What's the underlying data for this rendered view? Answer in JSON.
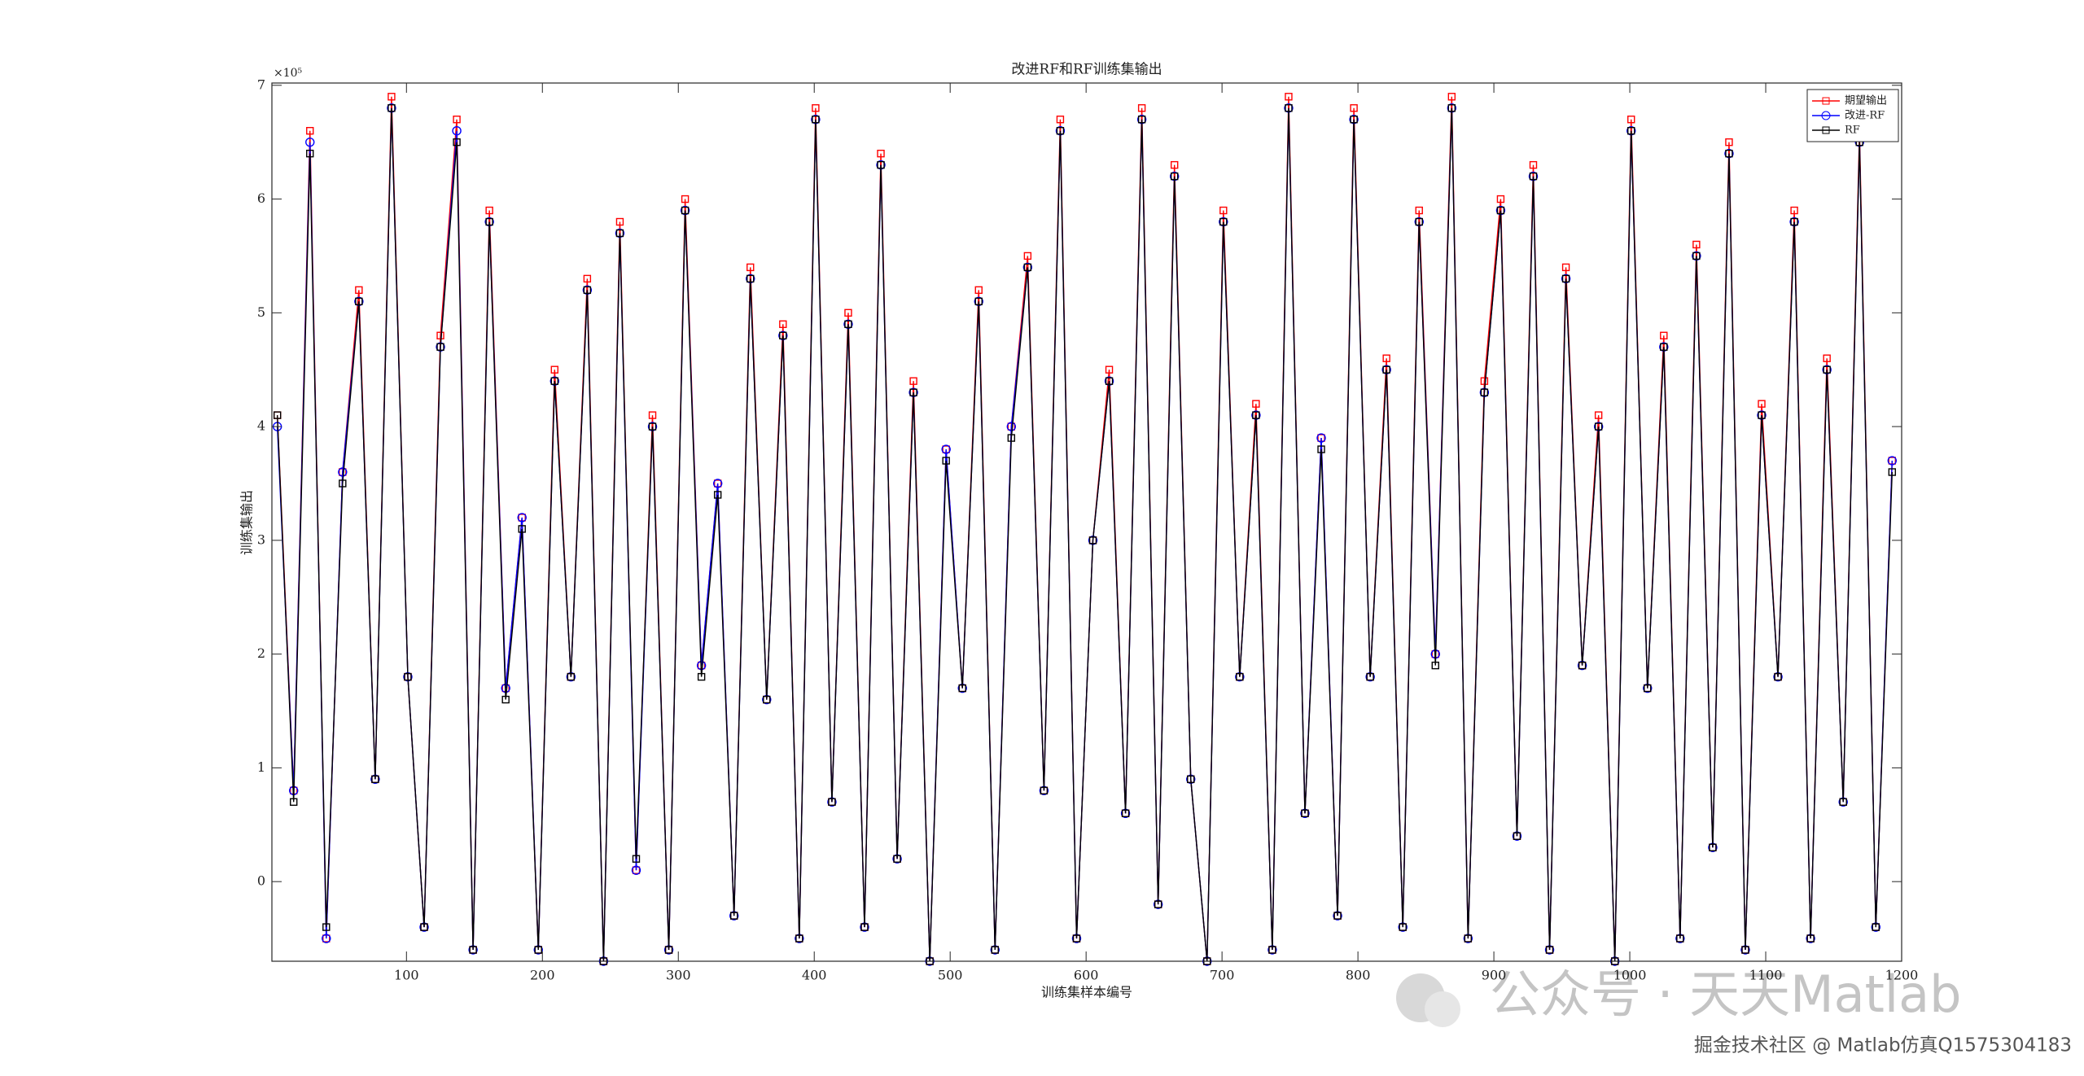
{
  "chart_data": {
    "type": "line",
    "title": "改进RF和RF训练集输出",
    "x_label": "训练集样本编号",
    "y_label": "训练集输出",
    "y_exponent_label": "×10⁵",
    "x": [
      5,
      17,
      29,
      41,
      53,
      65,
      77,
      89,
      101,
      113,
      125,
      137,
      149,
      161,
      173,
      185,
      197,
      209,
      221,
      233,
      245,
      257,
      269,
      281,
      293,
      305,
      317,
      329,
      341,
      353,
      365,
      377,
      389,
      401,
      413,
      425,
      437,
      449,
      461,
      473,
      485,
      497,
      509,
      521,
      533,
      545,
      557,
      569,
      581,
      593,
      605,
      617,
      629,
      641,
      653,
      665,
      677,
      689,
      701,
      713,
      725,
      737,
      749,
      761,
      773,
      785,
      797,
      809,
      821,
      833,
      845,
      857,
      869,
      881,
      893,
      905,
      917,
      929,
      941,
      953,
      965,
      977,
      989,
      1001,
      1013,
      1025,
      1037,
      1049,
      1061,
      1073,
      1085,
      1097,
      1109,
      1121,
      1133,
      1145,
      1157,
      1169,
      1181,
      1193
    ],
    "series": [
      {
        "name": "期望输出",
        "color": "#ff0000",
        "marker": "square",
        "values": [
          4.1,
          0.8,
          6.6,
          -0.5,
          3.6,
          5.2,
          0.9,
          6.9,
          1.8,
          -0.4,
          4.8,
          6.7,
          -0.6,
          5.9,
          1.7,
          3.2,
          -0.6,
          4.5,
          1.8,
          5.3,
          -0.7,
          5.8,
          0.1,
          4.1,
          -0.6,
          6.0,
          1.9,
          3.5,
          -0.3,
          5.4,
          1.6,
          4.9,
          -0.5,
          6.8,
          0.7,
          5.0,
          -0.4,
          6.4,
          0.2,
          4.4,
          -0.7,
          3.8,
          1.7,
          5.2,
          -0.6,
          4.0,
          5.5,
          0.8,
          6.7,
          -0.5,
          3.0,
          4.5,
          0.6,
          6.8,
          -0.2,
          6.3,
          0.9,
          -0.7,
          5.9,
          1.8,
          4.2,
          -0.6,
          6.9,
          0.6,
          3.9,
          -0.3,
          6.8,
          1.8,
          4.6,
          -0.4,
          5.9,
          2.0,
          6.9,
          -0.5,
          4.4,
          6.0,
          0.4,
          6.3,
          -0.6,
          5.4,
          1.9,
          4.1,
          -0.7,
          6.7,
          1.7,
          4.8,
          -0.5,
          5.6,
          0.3,
          6.5,
          -0.6,
          4.2,
          1.8,
          5.9,
          -0.5,
          4.6,
          0.7,
          6.6,
          -0.4,
          3.7
        ]
      },
      {
        "name": "改进-RF",
        "color": "#0000ff",
        "marker": "circle",
        "values": [
          4.0,
          0.8,
          6.5,
          -0.5,
          3.6,
          5.1,
          0.9,
          6.8,
          1.8,
          -0.4,
          4.7,
          6.6,
          -0.6,
          5.8,
          1.7,
          3.2,
          -0.6,
          4.4,
          1.8,
          5.2,
          -0.7,
          5.7,
          0.1,
          4.0,
          -0.6,
          5.9,
          1.9,
          3.5,
          -0.3,
          5.3,
          1.6,
          4.8,
          -0.5,
          6.7,
          0.7,
          4.9,
          -0.4,
          6.3,
          0.2,
          4.3,
          -0.7,
          3.8,
          1.7,
          5.1,
          -0.6,
          4.0,
          5.4,
          0.8,
          6.6,
          -0.5,
          3.0,
          4.4,
          0.6,
          6.7,
          -0.2,
          6.2,
          0.9,
          -0.7,
          5.8,
          1.8,
          4.1,
          -0.6,
          6.8,
          0.6,
          3.9,
          -0.3,
          6.7,
          1.8,
          4.5,
          -0.4,
          5.8,
          2.0,
          6.8,
          -0.5,
          4.3,
          5.9,
          0.4,
          6.2,
          -0.6,
          5.3,
          1.9,
          4.0,
          -0.7,
          6.6,
          1.7,
          4.7,
          -0.5,
          5.5,
          0.3,
          6.4,
          -0.6,
          4.1,
          1.8,
          5.8,
          -0.5,
          4.5,
          0.7,
          6.5,
          -0.4,
          3.7
        ]
      },
      {
        "name": "RF",
        "color": "#000000",
        "marker": "square",
        "values": [
          4.1,
          0.7,
          6.4,
          -0.4,
          3.5,
          5.1,
          0.9,
          6.8,
          1.8,
          -0.4,
          4.7,
          6.5,
          -0.6,
          5.8,
          1.6,
          3.1,
          -0.6,
          4.4,
          1.8,
          5.2,
          -0.7,
          5.7,
          0.2,
          4.0,
          -0.6,
          5.9,
          1.8,
          3.4,
          -0.3,
          5.3,
          1.6,
          4.8,
          -0.5,
          6.7,
          0.7,
          4.9,
          -0.4,
          6.3,
          0.2,
          4.3,
          -0.7,
          3.7,
          1.7,
          5.1,
          -0.6,
          3.9,
          5.4,
          0.8,
          6.6,
          -0.5,
          3.0,
          4.4,
          0.6,
          6.7,
          -0.2,
          6.2,
          0.9,
          -0.7,
          5.8,
          1.8,
          4.1,
          -0.6,
          6.8,
          0.6,
          3.8,
          -0.3,
          6.7,
          1.8,
          4.5,
          -0.4,
          5.8,
          1.9,
          6.8,
          -0.5,
          4.3,
          5.9,
          0.4,
          6.2,
          -0.6,
          5.3,
          1.9,
          4.0,
          -0.7,
          6.6,
          1.7,
          4.7,
          -0.5,
          5.5,
          0.3,
          6.4,
          -0.6,
          4.1,
          1.8,
          5.8,
          -0.5,
          4.5,
          0.7,
          6.5,
          -0.4,
          3.6
        ]
      }
    ],
    "xlim": [
      1,
      1200
    ],
    "xticks": [
      100,
      200,
      300,
      400,
      500,
      600,
      700,
      800,
      900,
      1000,
      1100,
      1200
    ],
    "ylim": [
      -0.7,
      7.02
    ],
    "yticks": [
      0,
      1,
      2,
      3,
      4,
      5,
      6,
      7
    ],
    "grid": false,
    "legend": "upper right",
    "watermark": "公众号 · 天天Matlab",
    "footer": "掘金技术社区 @ Matlab仿真Q1575304183"
  }
}
